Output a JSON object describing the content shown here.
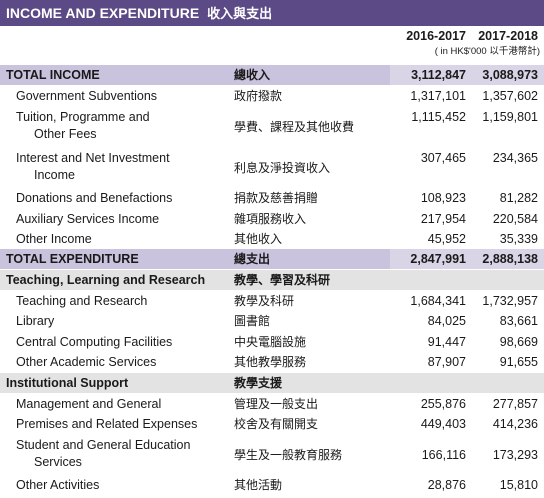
{
  "title": {
    "en": "INCOME AND EXPENDITURE",
    "zh": "收入與支出"
  },
  "columns": {
    "y1": "2016-2017",
    "y2": "2017-2018",
    "unit": "( in HK$'000 以千港幣計)"
  },
  "rows": [
    {
      "en": "TOTAL INCOME",
      "zh": "總收入",
      "v1": "3,112,847",
      "v2": "3,088,973"
    },
    {
      "en": "Government Subventions",
      "zh": "政府撥款",
      "v1": "1,317,101",
      "v2": "1,357,602"
    },
    {
      "en": "Tuition, Programme and",
      "en2": "Other Fees",
      "zh": "學費、課程及其他收費",
      "v1": "1,115,452",
      "v2": "1,159,801"
    },
    {
      "en": "Interest and Net Investment",
      "en2": "Income",
      "zh": "利息及淨投資收入",
      "v1": "307,465",
      "v2": "234,365"
    },
    {
      "en": "Donations and Benefactions",
      "zh": "捐款及慈善捐贈",
      "v1": "108,923",
      "v2": "81,282"
    },
    {
      "en": "Auxiliary Services Income",
      "zh": "雜項服務收入",
      "v1": "217,954",
      "v2": "220,584"
    },
    {
      "en": "Other Income",
      "zh": "其他收入",
      "v1": "45,952",
      "v2": "35,339"
    },
    {
      "en": "TOTAL EXPENDITURE",
      "zh": "總支出",
      "v1": "2,847,991",
      "v2": "2,888,138"
    },
    {
      "en": "Teaching, Learning and Research",
      "zh": "教學、學習及科研"
    },
    {
      "en": "Teaching and Research",
      "zh": "教學及科研",
      "v1": "1,684,341",
      "v2": "1,732,957"
    },
    {
      "en": "Library",
      "zh": "圖書館",
      "v1": "84,025",
      "v2": "83,661"
    },
    {
      "en": "Central Computing Facilities",
      "zh": "中央電腦設施",
      "v1": "91,447",
      "v2": "98,669"
    },
    {
      "en": "Other Academic Services",
      "zh": "其他教學服務",
      "v1": "87,907",
      "v2": "91,655"
    },
    {
      "en": "Institutional Support",
      "zh": "教學支援"
    },
    {
      "en": "Management and General",
      "zh": "管理及一般支出",
      "v1": "255,876",
      "v2": "277,857"
    },
    {
      "en": "Premises and Related Expenses",
      "zh": "校舍及有關開支",
      "v1": "449,403",
      "v2": "414,236"
    },
    {
      "en": "Student and General Education",
      "en2": "Services",
      "zh": "學生及一般教育服務",
      "v1": "166,116",
      "v2": "173,293"
    },
    {
      "en": "Other Activities",
      "zh": "其他活動",
      "v1": "28,876",
      "v2": "15,810"
    }
  ]
}
